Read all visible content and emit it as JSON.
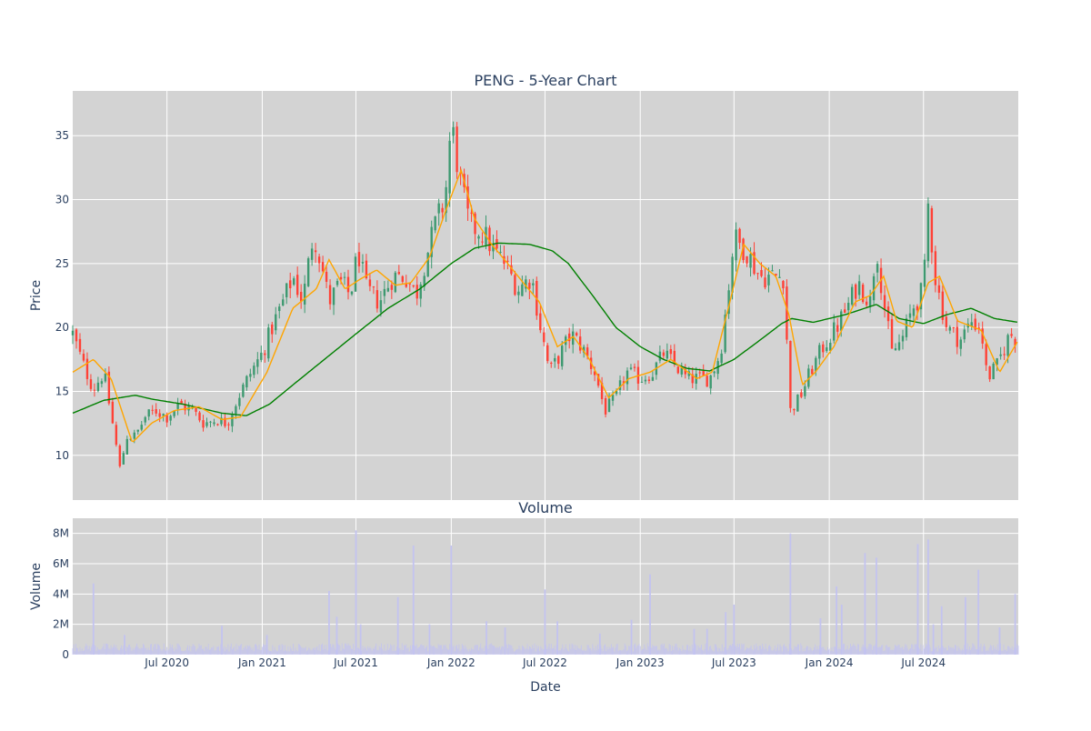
{
  "chart_data": [
    {
      "type": "candlestick",
      "title": "PENG - 5-Year Chart",
      "xlabel": "",
      "ylabel": "Price",
      "ylim": [
        6.5,
        38.5
      ],
      "yticks": [
        10,
        15,
        20,
        25,
        30,
        35
      ],
      "xlim": [
        "2020-01-01",
        "2024-12-31"
      ],
      "grid": true,
      "legend": "none",
      "colors": {
        "background": "#d3d3d3",
        "up": "#3d9970",
        "down": "#ff4136",
        "ma_short": "#ffa500",
        "ma_long": "#008000"
      },
      "series_anchors": {
        "close": [
          [
            "2020-01-01",
            19.5
          ],
          [
            "2020-01-20",
            17.2
          ],
          [
            "2020-02-10",
            15.2
          ],
          [
            "2020-03-01",
            16.5
          ],
          [
            "2020-03-20",
            12.0
          ],
          [
            "2020-04-01",
            9.0
          ],
          [
            "2020-04-15",
            11.5
          ],
          [
            "2020-05-01",
            11.5
          ],
          [
            "2020-05-20",
            13.0
          ],
          [
            "2020-06-10",
            13.5
          ],
          [
            "2020-07-01",
            13.0
          ],
          [
            "2020-07-25",
            14.0
          ],
          [
            "2020-08-20",
            13.5
          ],
          [
            "2020-09-10",
            12.5
          ],
          [
            "2020-10-05",
            12.8
          ],
          [
            "2020-10-25",
            12.5
          ],
          [
            "2020-11-15",
            14.5
          ],
          [
            "2020-12-10",
            16.5
          ],
          [
            "2021-01-01",
            18.0
          ],
          [
            "2021-01-20",
            20.0
          ],
          [
            "2021-02-15",
            22.5
          ],
          [
            "2021-03-01",
            24.0
          ],
          [
            "2021-03-20",
            22.0
          ],
          [
            "2021-04-10",
            27.5
          ],
          [
            "2021-04-25",
            25.0
          ],
          [
            "2021-05-10",
            22.0
          ],
          [
            "2021-06-01",
            23.5
          ],
          [
            "2021-06-20",
            22.5
          ],
          [
            "2021-07-05",
            26.0
          ],
          [
            "2021-07-20",
            23.0
          ],
          [
            "2021-08-15",
            22.0
          ],
          [
            "2021-09-10",
            24.0
          ],
          [
            "2021-10-05",
            24.0
          ],
          [
            "2021-10-25",
            22.5
          ],
          [
            "2021-11-10",
            25.0
          ],
          [
            "2021-12-01",
            28.0
          ],
          [
            "2021-12-20",
            30.0
          ],
          [
            "2022-01-01",
            36.0
          ],
          [
            "2022-01-20",
            31.0
          ],
          [
            "2022-02-05",
            28.0
          ],
          [
            "2022-03-01",
            27.5
          ],
          [
            "2022-03-25",
            26.0
          ],
          [
            "2022-04-15",
            25.0
          ],
          [
            "2022-05-10",
            23.0
          ],
          [
            "2022-06-05",
            24.0
          ],
          [
            "2022-06-20",
            20.5
          ],
          [
            "2022-07-10",
            16.5
          ],
          [
            "2022-08-01",
            18.0
          ],
          [
            "2022-08-20",
            19.5
          ],
          [
            "2022-09-10",
            18.5
          ],
          [
            "2022-10-05",
            16.5
          ],
          [
            "2022-10-25",
            13.5
          ],
          [
            "2022-11-15",
            14.5
          ],
          [
            "2022-12-05",
            16.5
          ],
          [
            "2023-01-01",
            16.0
          ],
          [
            "2023-01-25",
            16.5
          ],
          [
            "2023-02-15",
            18.0
          ],
          [
            "2023-03-10",
            17.0
          ],
          [
            "2023-04-01",
            16.0
          ],
          [
            "2023-04-25",
            16.0
          ],
          [
            "2023-05-15",
            16.0
          ],
          [
            "2023-06-05",
            18.0
          ],
          [
            "2023-06-20",
            23.0
          ],
          [
            "2023-07-01",
            27.0
          ],
          [
            "2023-07-25",
            26.0
          ],
          [
            "2023-08-20",
            24.0
          ],
          [
            "2023-09-15",
            24.0
          ],
          [
            "2023-10-05",
            24.0
          ],
          [
            "2023-10-18",
            13.5
          ],
          [
            "2023-11-05",
            14.5
          ],
          [
            "2023-11-25",
            16.5
          ],
          [
            "2023-12-20",
            18.5
          ],
          [
            "2024-01-15",
            20.0
          ],
          [
            "2024-02-10",
            22.0
          ],
          [
            "2024-02-25",
            23.5
          ],
          [
            "2024-03-20",
            22.0
          ],
          [
            "2024-04-01",
            26.5
          ],
          [
            "2024-04-15",
            22.0
          ],
          [
            "2024-05-01",
            18.0
          ],
          [
            "2024-05-20",
            19.0
          ],
          [
            "2024-06-10",
            21.5
          ],
          [
            "2024-07-01",
            23.0
          ],
          [
            "2024-07-10",
            29.5
          ],
          [
            "2024-07-25",
            23.5
          ],
          [
            "2024-08-15",
            20.0
          ],
          [
            "2024-09-10",
            19.0
          ],
          [
            "2024-10-01",
            20.5
          ],
          [
            "2024-10-20",
            20.0
          ],
          [
            "2024-11-01",
            16.0
          ],
          [
            "2024-11-20",
            17.0
          ],
          [
            "2024-12-15",
            19.5
          ],
          [
            "2024-12-31",
            19.0
          ]
        ],
        "ma_short": [
          [
            "2020-01-01",
            16.5
          ],
          [
            "2020-02-10",
            17.5
          ],
          [
            "2020-03-15",
            16.0
          ],
          [
            "2020-04-25",
            11.0
          ],
          [
            "2020-06-01",
            12.5
          ],
          [
            "2020-07-15",
            13.5
          ],
          [
            "2020-09-01",
            13.8
          ],
          [
            "2020-10-15",
            12.8
          ],
          [
            "2020-11-20",
            13.0
          ],
          [
            "2021-01-10",
            16.5
          ],
          [
            "2021-03-01",
            21.5
          ],
          [
            "2021-04-15",
            23.0
          ],
          [
            "2021-05-10",
            25.3
          ],
          [
            "2021-06-10",
            23.0
          ],
          [
            "2021-07-10",
            23.8
          ],
          [
            "2021-08-10",
            24.5
          ],
          [
            "2021-09-15",
            23.3
          ],
          [
            "2021-10-15",
            23.5
          ],
          [
            "2021-11-20",
            25.5
          ],
          [
            "2021-12-20",
            29.0
          ],
          [
            "2022-01-20",
            32.3
          ],
          [
            "2022-02-15",
            28.5
          ],
          [
            "2022-03-20",
            26.5
          ],
          [
            "2022-04-20",
            25.0
          ],
          [
            "2022-05-20",
            23.5
          ],
          [
            "2022-06-20",
            22.0
          ],
          [
            "2022-07-25",
            18.5
          ],
          [
            "2022-08-25",
            19.3
          ],
          [
            "2022-09-25",
            17.5
          ],
          [
            "2022-11-01",
            14.5
          ],
          [
            "2022-12-10",
            16.0
          ],
          [
            "2023-01-20",
            16.5
          ],
          [
            "2023-03-01",
            17.5
          ],
          [
            "2023-04-20",
            16.0
          ],
          [
            "2023-05-20",
            16.5
          ],
          [
            "2023-06-20",
            21.5
          ],
          [
            "2023-07-20",
            26.5
          ],
          [
            "2023-08-20",
            25.0
          ],
          [
            "2023-09-20",
            24.0
          ],
          [
            "2023-10-15",
            21.0
          ],
          [
            "2023-11-10",
            15.5
          ],
          [
            "2023-12-05",
            16.5
          ],
          [
            "2024-01-10",
            18.5
          ],
          [
            "2024-02-20",
            22.0
          ],
          [
            "2024-03-20",
            22.5
          ],
          [
            "2024-04-15",
            24.0
          ],
          [
            "2024-05-10",
            20.5
          ],
          [
            "2024-06-10",
            20.0
          ],
          [
            "2024-07-10",
            23.5
          ],
          [
            "2024-08-01",
            24.0
          ],
          [
            "2024-09-05",
            20.5
          ],
          [
            "2024-10-20",
            19.8
          ],
          [
            "2024-11-25",
            16.5
          ],
          [
            "2024-12-31",
            19.0
          ]
        ],
        "ma_long": [
          [
            "2020-01-01",
            13.3
          ],
          [
            "2020-03-01",
            14.3
          ],
          [
            "2020-05-01",
            14.7
          ],
          [
            "2020-06-01",
            14.4
          ],
          [
            "2020-08-01",
            14.0
          ],
          [
            "2020-10-15",
            13.3
          ],
          [
            "2020-12-01",
            13.1
          ],
          [
            "2021-01-15",
            14.0
          ],
          [
            "2021-03-01",
            15.5
          ],
          [
            "2021-05-01",
            17.5
          ],
          [
            "2021-07-01",
            19.5
          ],
          [
            "2021-09-01",
            21.5
          ],
          [
            "2021-11-01",
            23.0
          ],
          [
            "2022-01-01",
            25.0
          ],
          [
            "2022-02-15",
            26.2
          ],
          [
            "2022-04-01",
            26.6
          ],
          [
            "2022-06-01",
            26.5
          ],
          [
            "2022-07-15",
            26.0
          ],
          [
            "2022-08-15",
            25.0
          ],
          [
            "2022-10-01",
            22.5
          ],
          [
            "2022-11-15",
            20.0
          ],
          [
            "2023-01-01",
            18.5
          ],
          [
            "2023-02-15",
            17.5
          ],
          [
            "2023-04-01",
            16.8
          ],
          [
            "2023-05-15",
            16.6
          ],
          [
            "2023-07-01",
            17.5
          ],
          [
            "2023-08-20",
            19.0
          ],
          [
            "2023-10-01",
            20.3
          ],
          [
            "2023-10-20",
            20.7
          ],
          [
            "2023-12-01",
            20.4
          ],
          [
            "2024-02-01",
            21.0
          ],
          [
            "2024-04-01",
            21.8
          ],
          [
            "2024-05-15",
            20.7
          ],
          [
            "2024-07-01",
            20.3
          ],
          [
            "2024-08-15",
            21.0
          ],
          [
            "2024-10-01",
            21.5
          ],
          [
            "2024-11-15",
            20.7
          ],
          [
            "2024-12-31",
            20.4
          ]
        ]
      }
    },
    {
      "type": "bar",
      "title": "Volume",
      "xlabel": "Date",
      "ylabel": "Volume",
      "ylim": [
        0,
        9000000
      ],
      "yticks": [
        0,
        2000000,
        4000000,
        6000000,
        8000000
      ],
      "ytick_labels": [
        "0",
        "2M",
        "4M",
        "6M",
        "8M"
      ],
      "xlim": [
        "2020-01-01",
        "2024-12-31"
      ],
      "xticks": [
        "2020-07-01",
        "2021-01-01",
        "2021-07-01",
        "2022-01-01",
        "2022-07-01",
        "2023-01-01",
        "2023-07-01",
        "2024-01-01",
        "2024-07-01"
      ],
      "xtick_labels": [
        "Jul 2020",
        "Jan 2021",
        "Jul 2021",
        "Jan 2022",
        "Jul 2022",
        "Jan 2023",
        "Jul 2023",
        "Jan 2024",
        "Jul 2024"
      ],
      "grid": true,
      "colors": {
        "background": "#d3d3d3",
        "bar": "#c3c3f0"
      },
      "baseline_volume": 600000,
      "spikes": [
        [
          "2020-02-10",
          4700000
        ],
        [
          "2020-04-10",
          1300000
        ],
        [
          "2020-10-15",
          1900000
        ],
        [
          "2021-01-10",
          1300000
        ],
        [
          "2021-05-10",
          4200000
        ],
        [
          "2021-05-25",
          2500000
        ],
        [
          "2021-07-01",
          8200000
        ],
        [
          "2021-07-10",
          2000000
        ],
        [
          "2021-09-20",
          3800000
        ],
        [
          "2021-10-20",
          7200000
        ],
        [
          "2021-11-20",
          2000000
        ],
        [
          "2022-01-01",
          7200000
        ],
        [
          "2022-03-10",
          2200000
        ],
        [
          "2022-04-15",
          1800000
        ],
        [
          "2022-07-01",
          4300000
        ],
        [
          "2022-07-25",
          2200000
        ],
        [
          "2022-10-15",
          1400000
        ],
        [
          "2022-12-15",
          2300000
        ],
        [
          "2023-01-20",
          5300000
        ],
        [
          "2023-04-15",
          1700000
        ],
        [
          "2023-05-10",
          1700000
        ],
        [
          "2023-06-15",
          2800000
        ],
        [
          "2023-07-01",
          3300000
        ],
        [
          "2023-10-18",
          8000000
        ],
        [
          "2023-12-15",
          2400000
        ],
        [
          "2024-01-15",
          4500000
        ],
        [
          "2024-01-25",
          3300000
        ],
        [
          "2024-03-10",
          6700000
        ],
        [
          "2024-04-01",
          6400000
        ],
        [
          "2024-06-20",
          7300000
        ],
        [
          "2024-07-10",
          7600000
        ],
        [
          "2024-07-20",
          2000000
        ],
        [
          "2024-08-05",
          3200000
        ],
        [
          "2024-09-20",
          3800000
        ],
        [
          "2024-10-15",
          5600000
        ],
        [
          "2024-11-25",
          1800000
        ],
        [
          "2024-12-25",
          4000000
        ]
      ]
    }
  ]
}
